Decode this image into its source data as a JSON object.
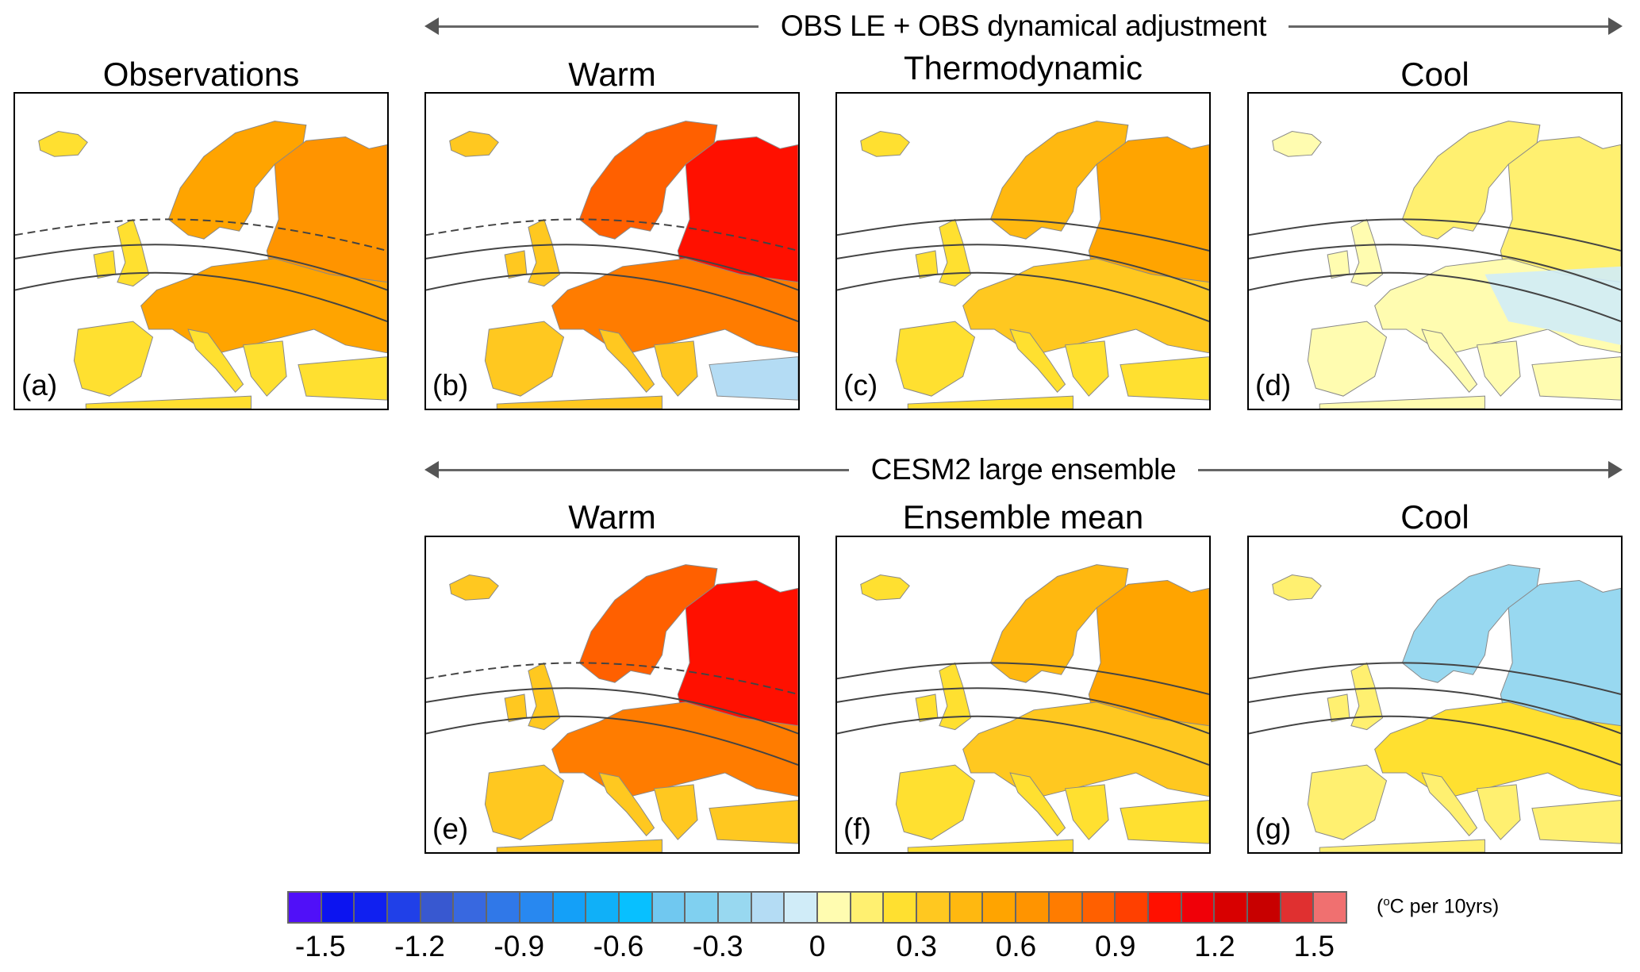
{
  "headers": {
    "top": "OBS LE + OBS dynamical adjustment",
    "bottom": "CESM2 large ensemble"
  },
  "panels": [
    {
      "id": "a",
      "title": "Observations",
      "label": "(a)",
      "intensity": 0.62,
      "blue_region": "none"
    },
    {
      "id": "b",
      "title": "Warm",
      "label": "(b)",
      "intensity": 0.95,
      "blue_region": "turkey"
    },
    {
      "id": "c",
      "title": "Thermodynamic",
      "label": "(c)",
      "intensity": 0.45,
      "blue_region": "none"
    },
    {
      "id": "d",
      "title": "Cool",
      "label": "(d)",
      "intensity": 0.12,
      "blue_region": "eastern-europe"
    },
    {
      "id": "e",
      "title": "Warm",
      "label": "(e)",
      "intensity": 0.95,
      "blue_region": "none"
    },
    {
      "id": "f",
      "title": "Ensemble mean",
      "label": "(f)",
      "intensity": 0.45,
      "blue_region": "none"
    },
    {
      "id": "g",
      "title": "Cool",
      "label": "(g)",
      "intensity": 0.22,
      "blue_region": "scandinavia"
    }
  ],
  "chart_data": {
    "type": "heatmap",
    "title": "Europe temperature trend maps",
    "colorbar": {
      "units": "(°C per 10yrs)",
      "units_parts": {
        "open": "(",
        "sup": "o",
        "rest": "C per 10yrs)"
      },
      "ticks": [
        "-1.5",
        "-1.2",
        "-0.9",
        "-0.6",
        "-0.3",
        "0",
        "0.3",
        "0.6",
        "0.9",
        "1.2",
        "1.5"
      ],
      "tick_values": [
        -1.5,
        -1.2,
        -0.9,
        -0.6,
        -0.3,
        0,
        0.3,
        0.6,
        0.9,
        1.2,
        1.5
      ],
      "range": [
        -1.6,
        1.6
      ],
      "step": 0.1,
      "colors": [
        "#5010f8",
        "#0c14f0",
        "#1020f0",
        "#2040e8",
        "#3858d0",
        "#3868e0",
        "#3078e8",
        "#2888f0",
        "#14a0f8",
        "#10b0f8",
        "#08c0ff",
        "#70c8f0",
        "#80d0f0",
        "#98d8f0",
        "#b4dcf4",
        "#d0ecf8",
        "#fffcb0",
        "#fff070",
        "#ffe030",
        "#ffc820",
        "#ffb810",
        "#ffa400",
        "#ff9400",
        "#ff7c00",
        "#ff6000",
        "#ff4000",
        "#ff1000",
        "#f00008",
        "#d80000",
        "#c80000",
        "#e03030",
        "#f07070"
      ]
    },
    "panels": [
      "Observations",
      "Warm",
      "Thermodynamic",
      "Cool",
      "Warm",
      "Ensemble mean",
      "Cool"
    ]
  }
}
